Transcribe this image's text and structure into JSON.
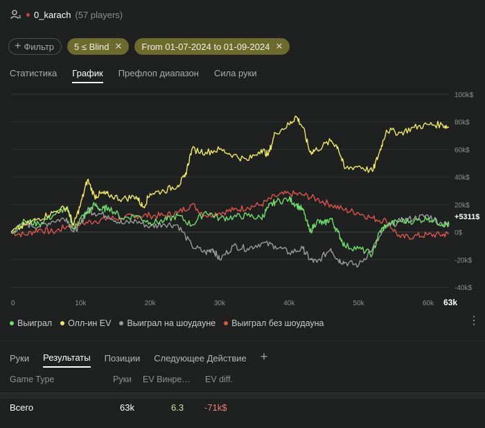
{
  "header": {
    "username": "0_karach",
    "players": "(57 players)"
  },
  "filters": {
    "filter_label": "Фильтр",
    "chips": [
      "5 ≤ Blind",
      "From 01-07-2024 to 01-09-2024"
    ]
  },
  "tabs": [
    "Статистика",
    "График",
    "Префлоп диапазон",
    "Сила руки"
  ],
  "active_tab": "График",
  "chart_data": {
    "type": "line",
    "x_ticks": [
      "0",
      "10k",
      "20k",
      "30k",
      "40k",
      "50k",
      "60k"
    ],
    "x_end_label": "63k",
    "xlim": [
      0,
      63000
    ],
    "y_ticks": [
      "100k$",
      "80k$",
      "60k$",
      "40k$",
      "20k$",
      "0$",
      "-20k$",
      "-40k$"
    ],
    "ylim": [
      -40000,
      100000
    ],
    "end_value_label": "+5311$",
    "series": [
      {
        "name": "Выиграл",
        "color": "#6fe06a",
        "x": [
          0,
          2000,
          4000,
          6000,
          8000,
          9000,
          10000,
          11000,
          12000,
          13000,
          14000,
          16000,
          18000,
          20000,
          22000,
          24000,
          26000,
          28000,
          30000,
          32000,
          34000,
          36000,
          37000,
          38000,
          40000,
          41000,
          42000,
          43000,
          44000,
          45000,
          46000,
          47000,
          48000,
          50000,
          52000,
          53000,
          54000,
          56000,
          58000,
          60000,
          62000,
          63000
        ],
        "y": [
          0,
          8000,
          6000,
          12000,
          18000,
          2000,
          10000,
          14000,
          20000,
          16000,
          18000,
          10000,
          12000,
          7000,
          8000,
          12000,
          5000,
          15000,
          10000,
          11000,
          12000,
          10000,
          18000,
          22000,
          24000,
          20000,
          16000,
          0,
          8000,
          6000,
          10000,
          0,
          -10000,
          -12000,
          -16000,
          0,
          5000,
          8000,
          8000,
          10000,
          6000,
          5311
        ]
      },
      {
        "name": "Олл-ин EV",
        "color": "#f2ea5f",
        "x": [
          0,
          2000,
          4000,
          6000,
          8000,
          9000,
          10000,
          11000,
          12000,
          13000,
          14000,
          16000,
          18000,
          19000,
          20000,
          22000,
          24000,
          25000,
          26000,
          28000,
          30000,
          32000,
          34000,
          36000,
          37000,
          38000,
          40000,
          41000,
          42000,
          43000,
          44000,
          46000,
          47000,
          48000,
          50000,
          52000,
          53000,
          54000,
          56000,
          58000,
          60000,
          62000,
          63000
        ],
        "y": [
          0,
          5000,
          10000,
          14000,
          18000,
          5000,
          20000,
          38000,
          26000,
          28000,
          27000,
          24000,
          26000,
          18000,
          28000,
          30000,
          34000,
          40000,
          60000,
          58000,
          60000,
          56000,
          52000,
          60000,
          56000,
          72000,
          78000,
          84000,
          76000,
          58000,
          60000,
          66000,
          62000,
          46000,
          48000,
          44000,
          58000,
          74000,
          72000,
          76000,
          78000,
          78000,
          76000
        ]
      },
      {
        "name": "Выиграл на шоудауне",
        "color": "#9b9b9b",
        "x": [
          0,
          2000,
          4000,
          6000,
          8000,
          9000,
          10000,
          11000,
          12000,
          14000,
          16000,
          18000,
          20000,
          22000,
          24000,
          26000,
          28000,
          29000,
          30000,
          32000,
          34000,
          36000,
          38000,
          40000,
          42000,
          43000,
          44000,
          46000,
          47000,
          48000,
          50000,
          52000,
          54000,
          56000,
          58000,
          60000,
          62000,
          63000
        ],
        "y": [
          0,
          6000,
          4000,
          8000,
          10000,
          0,
          6000,
          16000,
          14000,
          12000,
          6000,
          8000,
          4000,
          6000,
          5000,
          -10000,
          -15000,
          -12000,
          -20000,
          -10000,
          -12000,
          -8000,
          -10000,
          -15000,
          -12000,
          -20000,
          -22000,
          -12000,
          -20000,
          -22000,
          -24000,
          -12000,
          4000,
          8000,
          10000,
          12000,
          6000,
          5000
        ]
      },
      {
        "name": "Выиграл без шоудауна",
        "color": "#e0534c",
        "x": [
          0,
          2000,
          4000,
          6000,
          8000,
          10000,
          12000,
          14000,
          16000,
          18000,
          20000,
          22000,
          24000,
          26000,
          28000,
          30000,
          32000,
          34000,
          36000,
          38000,
          40000,
          42000,
          44000,
          46000,
          48000,
          50000,
          52000,
          54000,
          56000,
          58000,
          60000,
          62000,
          63000
        ],
        "y": [
          0,
          -2000,
          2000,
          0,
          4000,
          6000,
          8000,
          10000,
          10000,
          12000,
          12000,
          12000,
          14000,
          20000,
          12000,
          14000,
          16000,
          18000,
          20000,
          26000,
          28000,
          27000,
          24000,
          20000,
          16000,
          14000,
          10000,
          8000,
          -4000,
          -3000,
          -2000,
          -2000,
          -1000
        ]
      }
    ]
  },
  "bottom_tabs": [
    "Руки",
    "Результаты",
    "Позиции",
    "Следующее Действие"
  ],
  "active_bottom_tab": "Результаты",
  "add_symbol": "+",
  "table": {
    "headers": {
      "game_type": "Game Type",
      "hands": "Руки",
      "ev_win": "EV Винре…",
      "ev_diff": "EV diff."
    },
    "rows": [
      {
        "game_type": "Всего",
        "hands": "63k",
        "ev_win": "6.3",
        "ev_diff": "-71k$"
      }
    ],
    "colors": {
      "ev_win": "#d7e3a0",
      "ev_diff": "#f07f6f"
    }
  }
}
